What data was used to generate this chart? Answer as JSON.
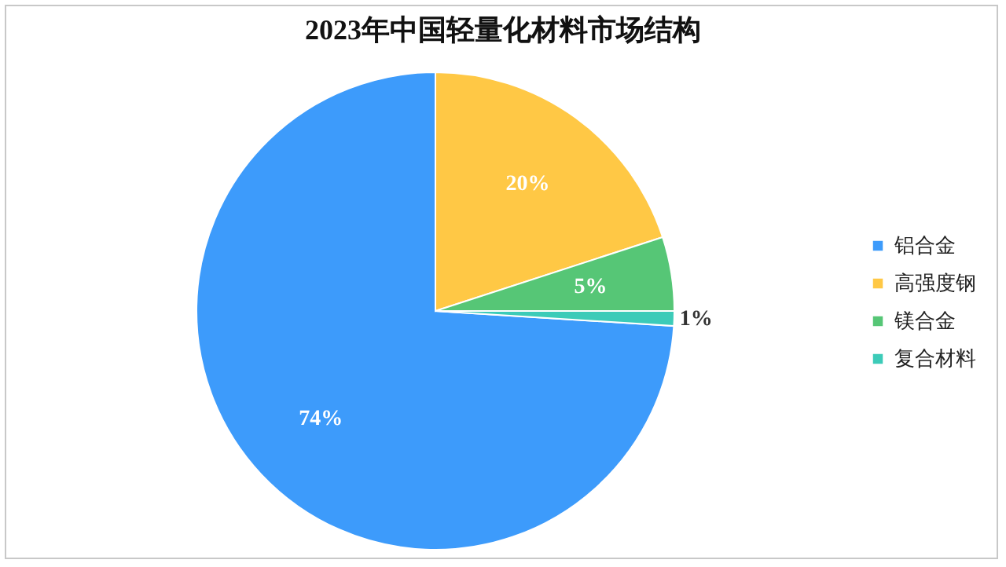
{
  "chart_data": {
    "type": "pie",
    "title": "2023年中国轻量化材料市场结构",
    "categories": [
      "铝合金",
      "高强度钢",
      "镁合金",
      "复合材料"
    ],
    "values": [
      74,
      20,
      5,
      1
    ],
    "colors": [
      "#3d9bfb",
      "#ffc845",
      "#56c676",
      "#3ccbb8"
    ],
    "value_labels": [
      "74%",
      "20%",
      "5%",
      "1%"
    ],
    "legend": "right"
  }
}
